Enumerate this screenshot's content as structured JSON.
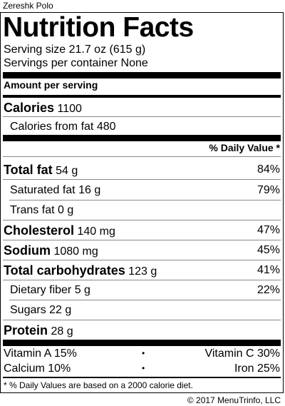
{
  "recipe_name": "Zereshk Polo",
  "title": "Nutrition Facts",
  "serving_size": "Serving size 21.7 oz (615 g)",
  "servings_per_container": "Servings per container None",
  "amount_per_serving": "Amount per serving",
  "calories": {
    "label": "Calories",
    "value": "1100"
  },
  "calories_from_fat": {
    "label": "Calories from fat",
    "value": "480"
  },
  "daily_value_header": "% Daily Value *",
  "nutrients": [
    {
      "label": "Total fat",
      "amount": "54 g",
      "dv": "84%"
    },
    {
      "label": "Saturated fat",
      "amount": "16 g",
      "dv": "79%"
    },
    {
      "label": "Trans fat",
      "amount": "0 g",
      "dv": ""
    },
    {
      "label": "Cholesterol",
      "amount": "140 mg",
      "dv": "47%"
    },
    {
      "label": "Sodium",
      "amount": "1080 mg",
      "dv": "45%"
    },
    {
      "label": "Total carbohydrates",
      "amount": "123 g",
      "dv": "41%"
    },
    {
      "label": "Dietary fiber",
      "amount": "5 g",
      "dv": "22%"
    },
    {
      "label": "Sugars",
      "amount": "22 g",
      "dv": ""
    },
    {
      "label": "Protein",
      "amount": "28 g",
      "dv": ""
    }
  ],
  "vitamins": [
    {
      "label": "Vitamin A",
      "value": "15%"
    },
    {
      "label": "Vitamin C",
      "value": "30%"
    },
    {
      "label": "Calcium",
      "value": "10%"
    },
    {
      "label": "Iron",
      "value": "25%"
    }
  ],
  "separator_symbol": "•",
  "footnote": "* % Daily Values are based on a 2000 calorie diet.",
  "copyright": "© 2017 MenuTrinfo, LLC"
}
